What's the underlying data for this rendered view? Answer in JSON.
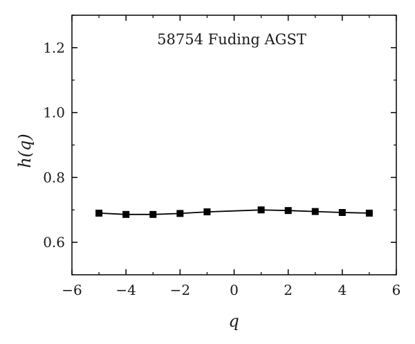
{
  "chart_data": {
    "type": "line",
    "title": "58754 Fuding AGST",
    "xlabel": "q",
    "ylabel_prefix": "h(",
    "ylabel_var": "q",
    "ylabel_suffix": ")",
    "xlim": [
      -6,
      6
    ],
    "ylim": [
      0.5,
      1.3
    ],
    "x_ticks": [
      -6,
      -4,
      -2,
      0,
      2,
      4,
      6
    ],
    "x_tick_labels": [
      "−6",
      "−4",
      "−2",
      "0",
      "2",
      "4",
      "6"
    ],
    "y_ticks": [
      0.6,
      0.8,
      1.0,
      1.2
    ],
    "y_tick_labels": [
      "0.6",
      "0.8",
      "1.0",
      "1.2"
    ],
    "grid": false,
    "series": [
      {
        "marker": "square",
        "color": "#000000",
        "x": [
          -5,
          -4,
          -3,
          -2,
          -1,
          1,
          2,
          3,
          4,
          5
        ],
        "y": [
          0.69,
          0.686,
          0.686,
          0.689,
          0.694,
          0.7,
          0.698,
          0.695,
          0.692,
          0.69
        ]
      }
    ]
  }
}
